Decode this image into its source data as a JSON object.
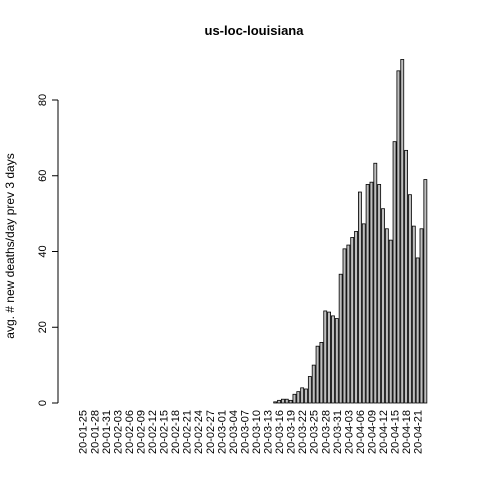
{
  "chart_data": {
    "type": "bar",
    "title": "us-loc-louisiana",
    "ylabel": "avg. # new deaths/day prev  3  days",
    "xlabel": "",
    "ylim": [
      0,
      93
    ],
    "yticks": [
      0,
      20,
      40,
      60,
      80
    ],
    "bar_color": "#bebebe",
    "start_date": "2020-01-23",
    "tick_labels": [
      "20-01-25",
      "20-01-28",
      "20-01-31",
      "20-02-03",
      "20-02-06",
      "20-02-09",
      "20-02-12",
      "20-02-15",
      "20-02-18",
      "20-02-21",
      "20-02-24",
      "20-02-27",
      "20-03-01",
      "20-03-04",
      "20-03-07",
      "20-03-10",
      "20-03-13",
      "20-03-16",
      "20-03-19",
      "20-03-22",
      "20-03-25",
      "20-03-28",
      "20-03-31",
      "20-04-03",
      "20-04-06",
      "20-04-09",
      "20-04-12",
      "20-04-15",
      "20-04-18",
      "20-04-21"
    ],
    "values": [
      0,
      0,
      0,
      0,
      0,
      0,
      0,
      0,
      0,
      0,
      0,
      0,
      0,
      0,
      0,
      0,
      0,
      0,
      0,
      0,
      0,
      0,
      0,
      0,
      0,
      0,
      0,
      0,
      0,
      0,
      0,
      0,
      0,
      0,
      0,
      0,
      0,
      0,
      0,
      0,
      0,
      0,
      0,
      0,
      0,
      0,
      0,
      0,
      0,
      0,
      0,
      0,
      0.3,
      0.7,
      1,
      1,
      0.7,
      2.3,
      3,
      4,
      3.7,
      7,
      10,
      15,
      16,
      24.3,
      24,
      23,
      22.3,
      34,
      40.7,
      41.7,
      43.7,
      45.3,
      55.7,
      47.3,
      57.7,
      58.3,
      63.3,
      57.7,
      51.3,
      46,
      43,
      69,
      87.7,
      90.7,
      66.7,
      55,
      46.7,
      38.3,
      46,
      59
    ]
  }
}
